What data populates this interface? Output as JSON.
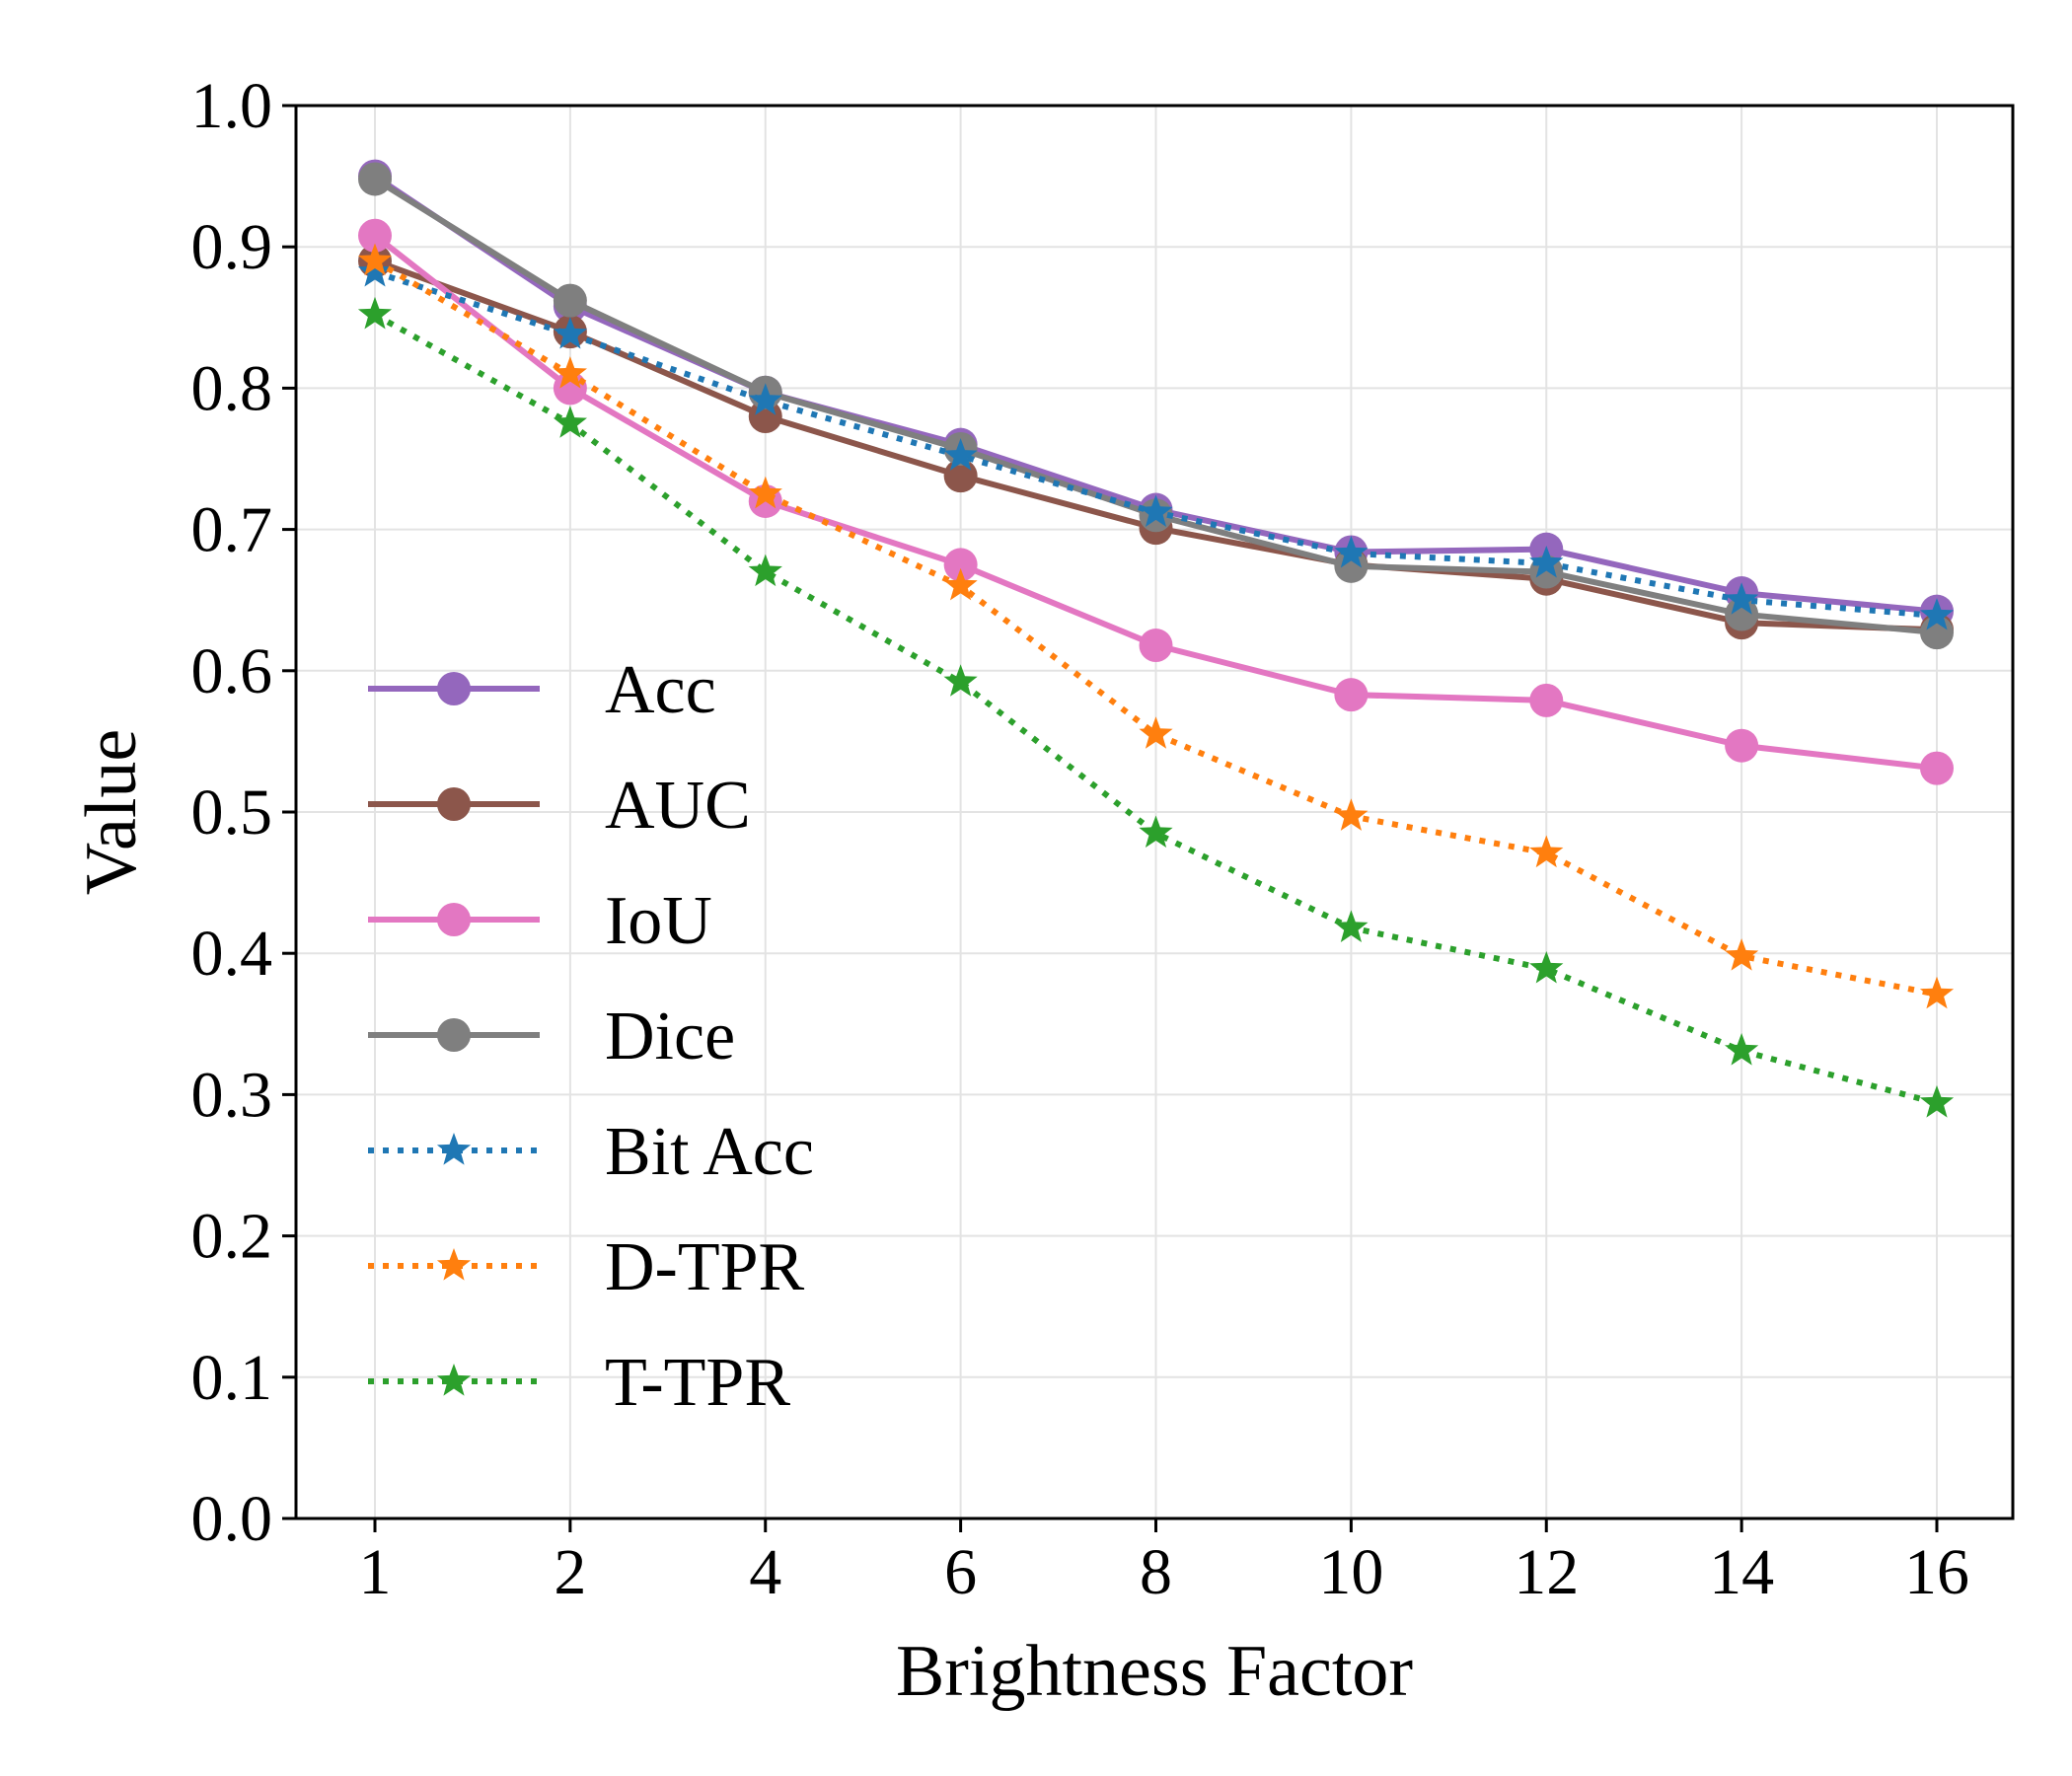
{
  "chart_data": {
    "type": "line",
    "title": "",
    "xlabel": "Brightness Factor",
    "ylabel": "Value",
    "categories": [
      "1",
      "2",
      "4",
      "6",
      "8",
      "10",
      "12",
      "14",
      "16"
    ],
    "ylim": [
      0.0,
      1.0
    ],
    "yticks": [
      "0.0",
      "0.1",
      "0.2",
      "0.3",
      "0.4",
      "0.5",
      "0.6",
      "0.7",
      "0.8",
      "0.9",
      "1.0"
    ],
    "grid": true,
    "legend_position": "left",
    "series": [
      {
        "name": "Acc",
        "color": "#9467bd",
        "style": "solid",
        "marker": "circle",
        "values": [
          0.95,
          0.858,
          0.797,
          0.76,
          0.714,
          0.684,
          0.686,
          0.655,
          0.642
        ]
      },
      {
        "name": "AUC",
        "color": "#8c564b",
        "style": "solid",
        "marker": "circle",
        "values": [
          0.89,
          0.84,
          0.78,
          0.738,
          0.701,
          0.675,
          0.665,
          0.634,
          0.629
        ]
      },
      {
        "name": "IoU",
        "color": "#e377c2",
        "style": "solid",
        "marker": "circle",
        "values": [
          0.908,
          0.8,
          0.72,
          0.675,
          0.618,
          0.583,
          0.579,
          0.547,
          0.531
        ]
      },
      {
        "name": "Dice",
        "color": "#7f7f7f",
        "style": "solid",
        "marker": "circle",
        "values": [
          0.948,
          0.862,
          0.797,
          0.757,
          0.71,
          0.674,
          0.67,
          0.64,
          0.627
        ]
      },
      {
        "name": "Bit Acc",
        "color": "#1f77b4",
        "style": "dotted",
        "marker": "star",
        "values": [
          0.882,
          0.838,
          0.791,
          0.752,
          0.712,
          0.683,
          0.676,
          0.65,
          0.639
        ]
      },
      {
        "name": "D-TPR",
        "color": "#ff7f0e",
        "style": "dotted",
        "marker": "star",
        "values": [
          0.89,
          0.81,
          0.725,
          0.66,
          0.555,
          0.497,
          0.471,
          0.398,
          0.371
        ]
      },
      {
        "name": "T-TPR",
        "color": "#2ca02c",
        "style": "dotted",
        "marker": "star",
        "values": [
          0.852,
          0.775,
          0.67,
          0.592,
          0.485,
          0.418,
          0.389,
          0.331,
          0.294
        ]
      }
    ]
  }
}
